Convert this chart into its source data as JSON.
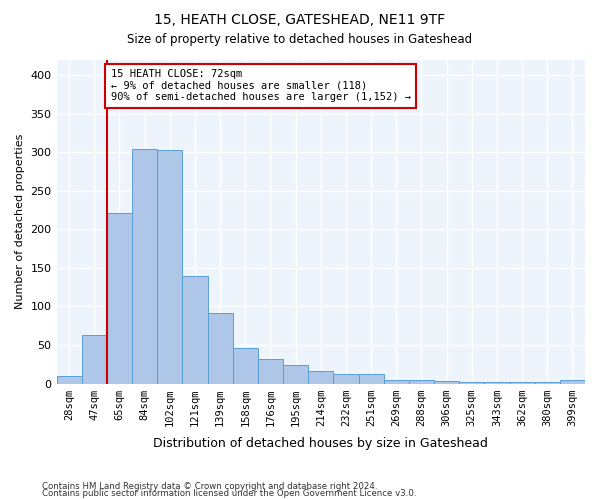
{
  "title1": "15, HEATH CLOSE, GATESHEAD, NE11 9TF",
  "title2": "Size of property relative to detached houses in Gateshead",
  "xlabel": "Distribution of detached houses by size in Gateshead",
  "ylabel": "Number of detached properties",
  "bar_labels": [
    "28sqm",
    "47sqm",
    "65sqm",
    "84sqm",
    "102sqm",
    "121sqm",
    "139sqm",
    "158sqm",
    "176sqm",
    "195sqm",
    "214sqm",
    "232sqm",
    "251sqm",
    "269sqm",
    "288sqm",
    "306sqm",
    "325sqm",
    "343sqm",
    "362sqm",
    "380sqm",
    "399sqm"
  ],
  "bar_values": [
    10,
    63,
    221,
    305,
    303,
    139,
    91,
    46,
    32,
    24,
    16,
    13,
    12,
    4,
    5,
    3,
    2,
    2,
    2,
    2,
    4
  ],
  "bar_color": "#aec6e8",
  "bar_edge_color": "#5a9fd4",
  "vline_index": 2,
  "vline_color": "#cc0000",
  "annotation_text": "15 HEATH CLOSE: 72sqm\n← 9% of detached houses are smaller (118)\n90% of semi-detached houses are larger (1,152) →",
  "annotation_box_color": "#ffffff",
  "annotation_box_edge": "#cc0000",
  "ylim": [
    0,
    420
  ],
  "yticks": [
    0,
    50,
    100,
    150,
    200,
    250,
    300,
    350,
    400
  ],
  "background_color": "#eef4fb",
  "grid_color": "#ffffff",
  "footnote1": "Contains HM Land Registry data © Crown copyright and database right 2024.",
  "footnote2": "Contains public sector information licensed under the Open Government Licence v3.0."
}
